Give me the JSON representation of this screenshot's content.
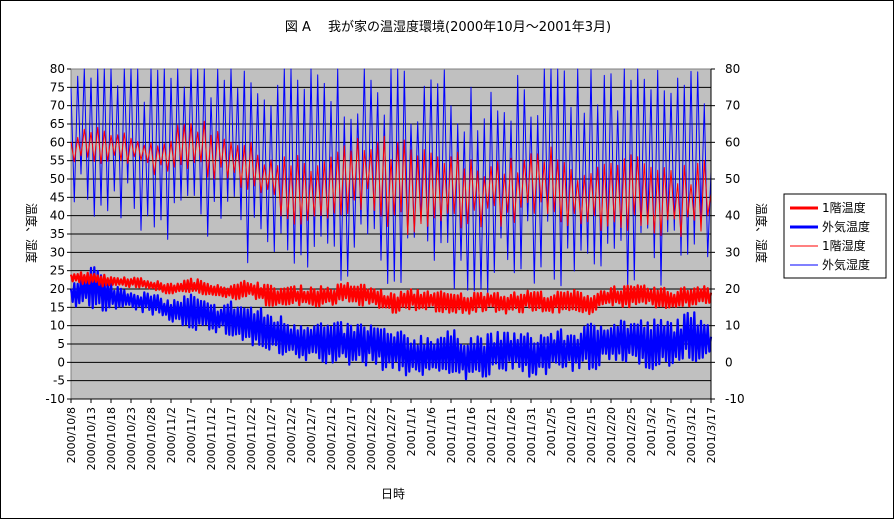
{
  "chart_data": {
    "type": "line",
    "title": "図 A　 我が家の温湿度環境(2000年10月～2001年3月)",
    "xlabel": "日時",
    "ylabel_left": "温度、湿度",
    "ylabel_right": "温度、湿度",
    "ylim_left": [
      -10,
      80
    ],
    "ylim_right": [
      -10,
      80
    ],
    "yticks_left": [
      -10,
      -5,
      0,
      5,
      10,
      15,
      20,
      25,
      30,
      35,
      40,
      45,
      50,
      55,
      60,
      65,
      70,
      75,
      80
    ],
    "yticks_right": [
      -10,
      0,
      10,
      20,
      30,
      40,
      50,
      60,
      70,
      80
    ],
    "categories": [
      "2000/10/8",
      "2000/10/13",
      "2000/10/18",
      "2000/10/23",
      "2000/10/28",
      "2000/11/2",
      "2000/11/7",
      "2000/11/12",
      "2000/11/17",
      "2000/11/22",
      "2000/11/27",
      "2000/12/2",
      "2000/12/7",
      "2000/12/12",
      "2000/12/17",
      "2000/12/22",
      "2000/12/27",
      "2001/1/1",
      "2001/1/6",
      "2001/1/11",
      "2001/1/16",
      "2001/1/21",
      "2001/1/26",
      "2001/1/31",
      "2001/2/5",
      "2001/2/10",
      "2001/2/15",
      "2001/2/20",
      "2001/2/25",
      "2001/3/2",
      "2001/3/7",
      "2001/3/12",
      "2001/3/17"
    ],
    "series": [
      {
        "name": "1階温度",
        "axis": "left",
        "color": "#ff0000",
        "style": "thick",
        "values": [
          23,
          23,
          22,
          22,
          21,
          20,
          21,
          20,
          19,
          20,
          18,
          18,
          18,
          18,
          19,
          18,
          16,
          17,
          17,
          16,
          16,
          17,
          16,
          17,
          16,
          17,
          16,
          18,
          18,
          18,
          17,
          18,
          19
        ],
        "amplitude": [
          1.5,
          2,
          1.5,
          1.5,
          1.5,
          1.5,
          2,
          2,
          2,
          3,
          3,
          3,
          3,
          3,
          3,
          3,
          3,
          3,
          3,
          3,
          3,
          3,
          3,
          3,
          3,
          3,
          3,
          3,
          3,
          3,
          3,
          3,
          3
        ]
      },
      {
        "name": "外気温度",
        "axis": "left",
        "color": "#0000ff",
        "style": "thick",
        "values": [
          18,
          21,
          18,
          17,
          16,
          14,
          14,
          12,
          12,
          10,
          8,
          6,
          6,
          5,
          5,
          5,
          3,
          2,
          2,
          3,
          1,
          2,
          3,
          2,
          3,
          3,
          4,
          6,
          6,
          5,
          5,
          7,
          7
        ],
        "amplitude": [
          4,
          7,
          4,
          3,
          3,
          3,
          5,
          4,
          5,
          6,
          6,
          6,
          6,
          6,
          6,
          6,
          6,
          6,
          6,
          6,
          7,
          6,
          6,
          6,
          6,
          6,
          7,
          7,
          6,
          7,
          7,
          7,
          7
        ]
      },
      {
        "name": "1階湿度",
        "axis": "right",
        "color": "#ff0000",
        "style": "thin",
        "values": [
          58,
          60,
          58,
          59,
          56,
          57,
          60,
          58,
          56,
          52,
          50,
          47,
          46,
          48,
          51,
          52,
          48,
          47,
          46,
          47,
          46,
          47,
          46,
          48,
          49,
          45,
          46,
          43,
          46,
          44,
          44,
          44,
          46
        ],
        "amplitude": [
          4,
          6,
          4,
          5,
          5,
          6,
          8,
          8,
          8,
          8,
          8,
          10,
          10,
          10,
          10,
          10,
          14,
          14,
          12,
          12,
          10,
          10,
          10,
          10,
          10,
          10,
          10,
          12,
          12,
          10,
          10,
          10,
          10
        ]
      },
      {
        "name": "外気湿度",
        "axis": "right",
        "color": "#0000ff",
        "style": "thin",
        "values": [
          66,
          62,
          60,
          60,
          58,
          60,
          62,
          60,
          58,
          55,
          52,
          52,
          52,
          52,
          52,
          52,
          52,
          52,
          50,
          50,
          50,
          50,
          52,
          52,
          52,
          52,
          50,
          52,
          52,
          52,
          52,
          52,
          52
        ],
        "amplitude": [
          22,
          26,
          24,
          26,
          26,
          28,
          28,
          28,
          28,
          30,
          30,
          32,
          32,
          32,
          32,
          32,
          32,
          32,
          32,
          32,
          32,
          32,
          32,
          32,
          32,
          32,
          32,
          32,
          32,
          32,
          32,
          32,
          32
        ]
      }
    ],
    "legend_position": "right",
    "grid": true,
    "plot_background": "#c0c0c0"
  }
}
